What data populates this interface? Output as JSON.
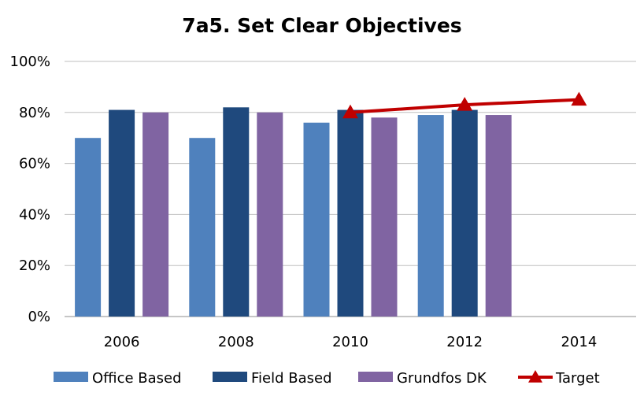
{
  "chart_data": {
    "type": "bar",
    "title": "7a5. Set Clear Objectives",
    "xlabel": "",
    "ylabel": "",
    "categories": [
      "2006",
      "2008",
      "2010",
      "2012",
      "2014"
    ],
    "ylim": [
      0,
      100
    ],
    "y_ticks": [
      "0%",
      "20%",
      "40%",
      "60%",
      "80%",
      "100%"
    ],
    "y_tick_values": [
      0,
      20,
      40,
      60,
      80,
      100
    ],
    "grid": true,
    "legend_position": "bottom",
    "series": [
      {
        "name": "Office Based",
        "type": "bar",
        "color": "#4F81BD",
        "values": [
          70,
          70,
          76,
          79,
          null
        ]
      },
      {
        "name": "Field Based",
        "type": "bar",
        "color": "#1F497D",
        "values": [
          81,
          82,
          81,
          81,
          null
        ]
      },
      {
        "name": "Grundfos DK",
        "type": "bar",
        "color": "#8064A2",
        "values": [
          80,
          80,
          78,
          79,
          null
        ]
      },
      {
        "name": "Target",
        "type": "line",
        "marker": "triangle",
        "color": "#C00000",
        "values": [
          null,
          null,
          80,
          83,
          85
        ]
      }
    ]
  }
}
